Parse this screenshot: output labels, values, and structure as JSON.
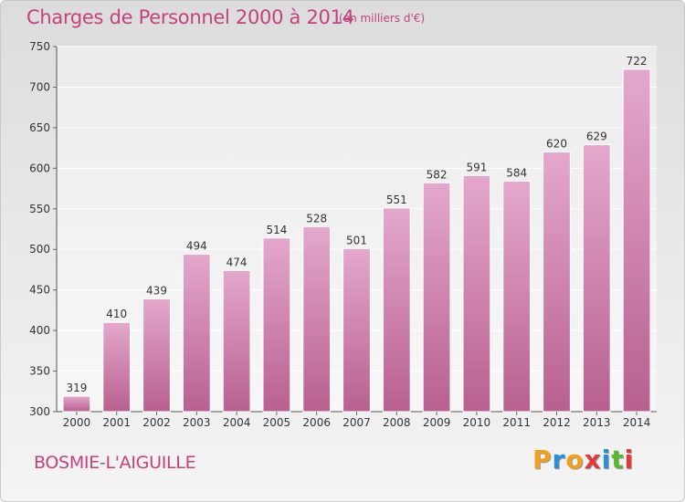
{
  "chart_data": {
    "type": "bar",
    "title": "Charges de Personnel 2000 à 2014",
    "subtitle": "(en milliers d'€)",
    "categories": [
      "2000",
      "2001",
      "2002",
      "2003",
      "2004",
      "2005",
      "2006",
      "2007",
      "2008",
      "2009",
      "2010",
      "2011",
      "2012",
      "2013",
      "2014"
    ],
    "values": [
      319,
      410,
      439,
      494,
      474,
      514,
      528,
      501,
      551,
      582,
      591,
      584,
      620,
      629,
      722
    ],
    "ylim": [
      300,
      750
    ],
    "yticks": [
      300,
      350,
      400,
      450,
      500,
      550,
      600,
      650,
      700,
      750
    ],
    "xlabel": "",
    "ylabel": "",
    "bar_color": "#c8609a"
  },
  "footer": {
    "location": "BOSMIE-L'AIGUILLE",
    "brand": [
      "P",
      "r",
      "o",
      "x",
      "i",
      "t",
      "i"
    ],
    "brand_colors": [
      "#f0a020",
      "#2a8fd8",
      "#f0a020",
      "#e03a3a",
      "#2a8fd8",
      "#5cb82e",
      "#e03a3a"
    ]
  }
}
